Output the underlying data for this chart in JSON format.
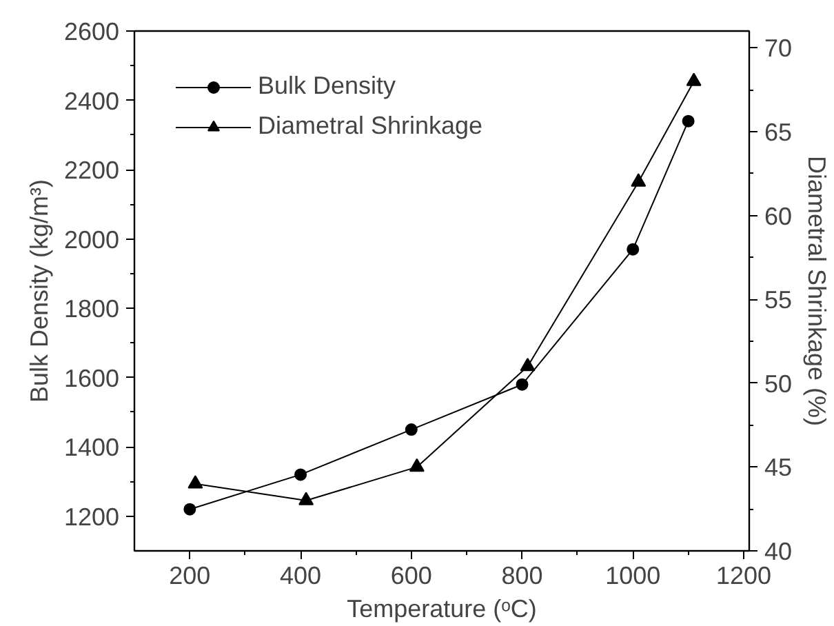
{
  "chart_data": {
    "type": "line",
    "xlabel": "Temperature (ᵒC)",
    "ylabel": "Bulk Density (kg/m³)",
    "y2label": "Diametral Shrinkage (%)",
    "xlim": [
      100,
      1210
    ],
    "xticks": [
      200,
      400,
      600,
      800,
      1000,
      1200
    ],
    "ylim": [
      1100,
      2600
    ],
    "yticks": [
      1200,
      1400,
      1600,
      1800,
      2000,
      2200,
      2400,
      2600
    ],
    "y2lim": [
      40,
      71
    ],
    "y2ticks": [
      40,
      45,
      50,
      55,
      60,
      65,
      70
    ],
    "legend": "top left",
    "grid": false,
    "series": [
      {
        "name": "Bulk Density",
        "color": "#000000",
        "marker": "circle",
        "x": [
          200,
          400,
          600,
          800,
          1000,
          1100
        ],
        "values": [
          1220,
          1320,
          1450,
          1580,
          1970,
          2340
        ]
      },
      {
        "name": "Diametral Shrinkage",
        "color": "#000000",
        "marker": "triangle",
        "axis": "y2",
        "x": [
          210,
          410,
          610,
          810,
          1010,
          1110
        ],
        "values": [
          44,
          43,
          45,
          51,
          62,
          68
        ]
      }
    ]
  }
}
